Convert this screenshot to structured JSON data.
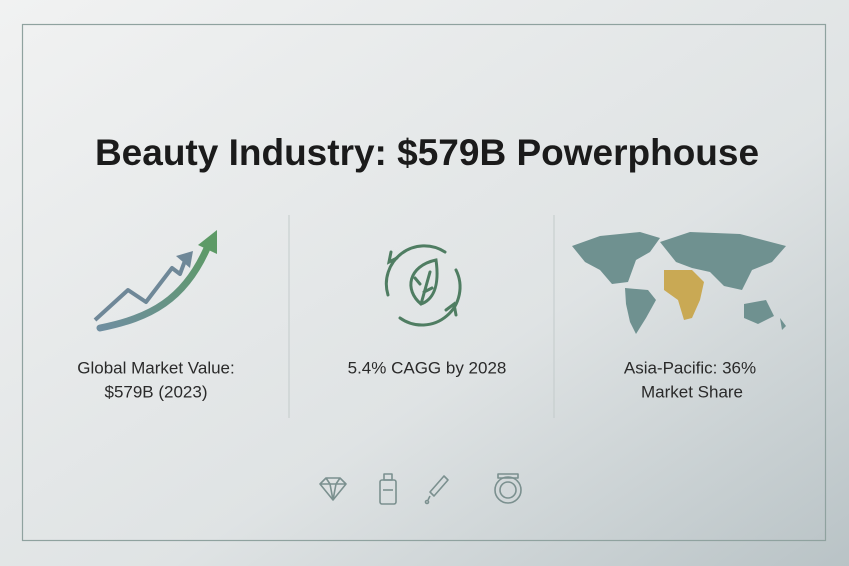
{
  "header": {
    "title": "Beauty Industry: $579B Powerphouse"
  },
  "panels": [
    {
      "lines": [
        "Global Market Value:",
        "$579B (2023)"
      ]
    },
    {
      "lines": [
        "5.4% CAGG by 2028"
      ]
    },
    {
      "lines": [
        "Asia-Pacific: 36%",
        "Market Share"
      ]
    }
  ]
}
